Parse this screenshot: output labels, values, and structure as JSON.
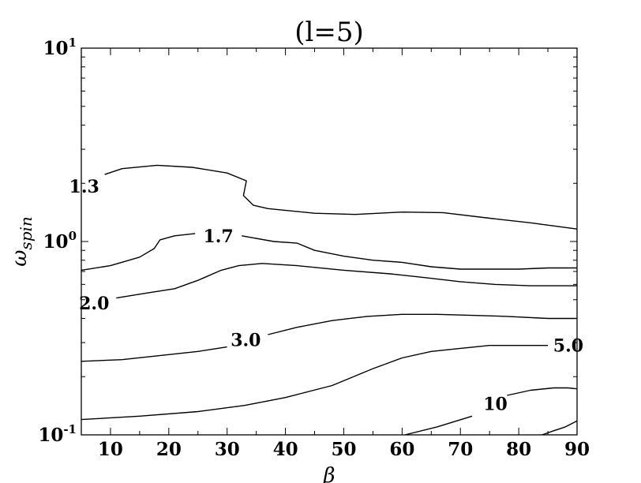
{
  "chart_data": {
    "type": "contour",
    "title": "(l=5)",
    "xlabel": "β",
    "ylabel": "ω_spin",
    "xlim": [
      5,
      90
    ],
    "ylim": [
      0.1,
      10
    ],
    "yscale": "log",
    "grid": false,
    "x_ticks": [
      {
        "value": 10,
        "label": "10"
      },
      {
        "value": 20,
        "label": "20"
      },
      {
        "value": 30,
        "label": "30"
      },
      {
        "value": 40,
        "label": "40"
      },
      {
        "value": 50,
        "label": "50"
      },
      {
        "value": 60,
        "label": "60"
      },
      {
        "value": 70,
        "label": "70"
      },
      {
        "value": 80,
        "label": "80"
      },
      {
        "value": 90,
        "label": "90"
      }
    ],
    "y_ticks": [
      {
        "value": 0.1,
        "base": "10",
        "exp": "-1"
      },
      {
        "value": 1,
        "base": "10",
        "exp": "0"
      },
      {
        "value": 10,
        "base": "10",
        "exp": "1"
      }
    ],
    "contours": [
      {
        "level": "1.3",
        "label": "1.3",
        "label_at": [
          5.5,
          1.93
        ],
        "points": [
          [
            9,
            2.22
          ],
          [
            12,
            2.38
          ],
          [
            18,
            2.48
          ],
          [
            24,
            2.42
          ],
          [
            30,
            2.26
          ],
          [
            33.3,
            2.06
          ],
          [
            32.8,
            1.73
          ],
          [
            34.5,
            1.54
          ],
          [
            37,
            1.48
          ],
          [
            45,
            1.4
          ],
          [
            52,
            1.38
          ],
          [
            60,
            1.42
          ],
          [
            67,
            1.41
          ],
          [
            75,
            1.32
          ],
          [
            82,
            1.25
          ],
          [
            90,
            1.16
          ]
        ]
      },
      {
        "level": "1.7",
        "label": "1.7",
        "label_at": [
          28.5,
          1.07
        ],
        "points": [
          [
            5,
            0.71
          ],
          [
            10,
            0.75
          ],
          [
            15,
            0.83
          ],
          [
            17.5,
            0.92
          ],
          [
            18.5,
            1.02
          ],
          [
            21,
            1.07
          ],
          [
            24.5,
            1.1
          ],
          null,
          [
            32.5,
            1.07
          ],
          [
            38,
            1.0
          ],
          [
            42,
            0.98
          ],
          [
            45,
            0.9
          ],
          [
            50,
            0.84
          ],
          [
            55,
            0.8
          ],
          [
            60,
            0.78
          ],
          [
            65,
            0.74
          ],
          [
            70,
            0.72
          ],
          [
            75,
            0.72
          ],
          [
            80,
            0.72
          ],
          [
            85,
            0.73
          ],
          [
            90,
            0.73
          ]
        ]
      },
      {
        "level": "2.0",
        "label": "2.0",
        "label_at": [
          7.2,
          0.48
        ],
        "points": [
          [
            11,
            0.51
          ],
          [
            16,
            0.54
          ],
          [
            21,
            0.57
          ],
          [
            25,
            0.63
          ],
          [
            29,
            0.71
          ],
          [
            32,
            0.75
          ],
          [
            36,
            0.77
          ],
          [
            42,
            0.75
          ],
          [
            50,
            0.71
          ],
          [
            58,
            0.68
          ],
          [
            64,
            0.65
          ],
          [
            70,
            0.62
          ],
          [
            76,
            0.6
          ],
          [
            82,
            0.59
          ],
          [
            90,
            0.59
          ]
        ]
      },
      {
        "level": "3.0",
        "label": "3.0",
        "label_at": [
          33.2,
          0.31
        ],
        "points": [
          [
            5,
            0.24
          ],
          [
            12,
            0.245
          ],
          [
            20,
            0.26
          ],
          [
            25,
            0.27
          ],
          [
            30,
            0.285
          ],
          null,
          [
            37,
            0.33
          ],
          [
            42,
            0.36
          ],
          [
            48,
            0.39
          ],
          [
            54,
            0.41
          ],
          [
            60,
            0.42
          ],
          [
            66,
            0.42
          ],
          [
            72,
            0.415
          ],
          [
            78,
            0.41
          ],
          [
            85,
            0.4
          ],
          [
            90,
            0.4
          ]
        ]
      },
      {
        "level": "5.0",
        "label": "5.0",
        "label_at": [
          88.5,
          0.29
        ],
        "points": [
          [
            5,
            0.12
          ],
          [
            15,
            0.125
          ],
          [
            25,
            0.132
          ],
          [
            33,
            0.142
          ],
          [
            40,
            0.156
          ],
          [
            48,
            0.18
          ],
          [
            55,
            0.22
          ],
          [
            60,
            0.25
          ],
          [
            65,
            0.27
          ],
          [
            70,
            0.28
          ],
          [
            75,
            0.29
          ],
          [
            80,
            0.29
          ],
          [
            85,
            0.29
          ]
        ]
      },
      {
        "level": "10",
        "label": "10",
        "label_at": [
          76.0,
          0.145
        ],
        "points": [
          [
            60.5,
            0.1
          ],
          [
            66,
            0.11
          ],
          [
            72,
            0.125
          ],
          null,
          [
            78,
            0.16
          ],
          [
            82,
            0.17
          ],
          [
            86,
            0.175
          ],
          [
            88.5,
            0.175
          ],
          [
            90,
            0.173
          ]
        ]
      },
      {
        "level": "",
        "label": "",
        "label_at": null,
        "points": [
          [
            84,
            0.1
          ],
          [
            86,
            0.105
          ],
          [
            88,
            0.11
          ],
          [
            90,
            0.118
          ]
        ]
      }
    ]
  }
}
